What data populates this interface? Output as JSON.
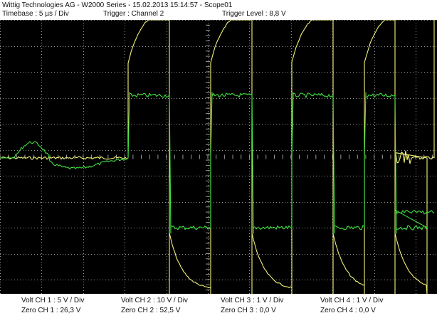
{
  "header": {
    "title": "Wittig Technologies AG - W2000 Series  -  15.02.2013 15:14:57 - Scope01",
    "timebase": "Timebase : 5 µs / Div",
    "trigger_source": "Trigger : Channel 2",
    "trigger_level": "Trigger Level : 8,8 V"
  },
  "colors": {
    "screen_background": "#000000",
    "grid": "#9a9a9a",
    "trace_yellow": "#f2f27a",
    "trace_green": "#3fe03f"
  },
  "channels": [
    {
      "volt": "Volt CH 1 : 5 V / Div",
      "zero": "Zero CH 1 : 26,3 V"
    },
    {
      "volt": "Volt CH 2 : 10 V / Div",
      "zero": "Zero CH 2 : 52,5 V"
    },
    {
      "volt": "Volt CH 3 : 1 V / Div",
      "zero": "Zero CH 3 : 0,0 V"
    },
    {
      "volt": "Volt CH 4 : 1 V / Div",
      "zero": "Zero CH 4 : 0,0 V"
    }
  ]
}
